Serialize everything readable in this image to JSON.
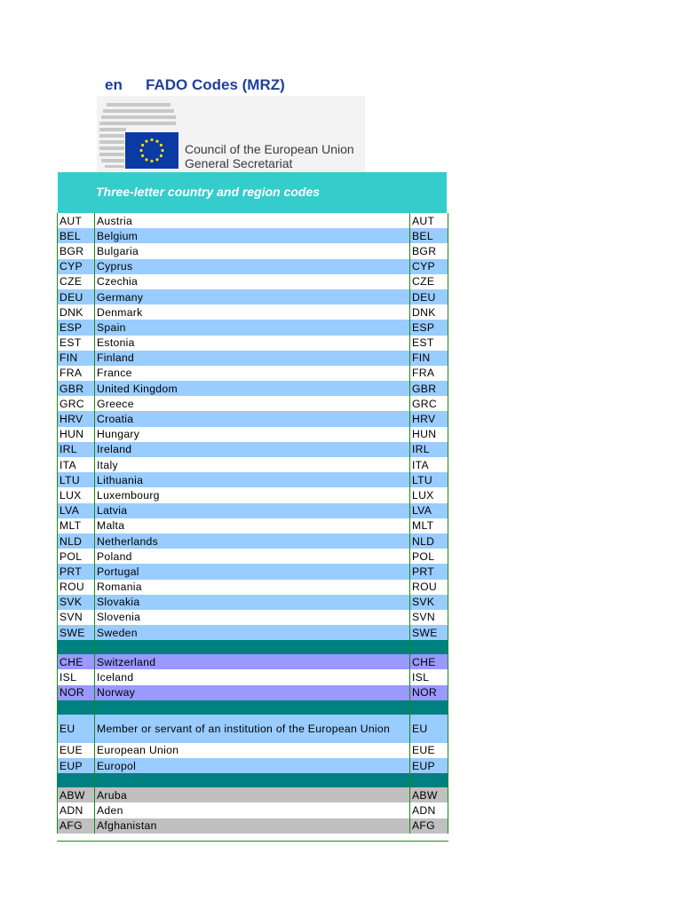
{
  "header": {
    "lang": "en",
    "title": "FADO Codes (MRZ)"
  },
  "logo": {
    "line1": "Council of the European Union",
    "line2": "General Secretariat"
  },
  "section_title": "Three-letter country and region codes",
  "rows": [
    {
      "style": "white",
      "code": "AUT",
      "name": "Austria",
      "code2": "AUT"
    },
    {
      "style": "blue",
      "code": "BEL",
      "name": "Belgium",
      "code2": "BEL"
    },
    {
      "style": "white",
      "code": "BGR",
      "name": "Bulgaria",
      "code2": "BGR"
    },
    {
      "style": "blue",
      "code": "CYP",
      "name": "Cyprus",
      "code2": "CYP"
    },
    {
      "style": "white",
      "code": "CZE",
      "name": "Czechia",
      "code2": "CZE"
    },
    {
      "style": "blue",
      "code": "DEU",
      "name": "Germany",
      "code2": "DEU"
    },
    {
      "style": "white",
      "code": "DNK",
      "name": "Denmark",
      "code2": "DNK"
    },
    {
      "style": "blue",
      "code": "ESP",
      "name": "Spain",
      "code2": "ESP"
    },
    {
      "style": "white",
      "code": "EST",
      "name": "Estonia",
      "code2": "EST"
    },
    {
      "style": "blue",
      "code": "FIN",
      "name": "Finland",
      "code2": "FIN"
    },
    {
      "style": "white",
      "code": "FRA",
      "name": "France",
      "code2": "FRA"
    },
    {
      "style": "blue",
      "code": "GBR",
      "name": "United Kingdom",
      "code2": "GBR"
    },
    {
      "style": "white",
      "code": "GRC",
      "name": "Greece",
      "code2": "GRC"
    },
    {
      "style": "blue",
      "code": "HRV",
      "name": "Croatia",
      "code2": "HRV"
    },
    {
      "style": "white",
      "code": "HUN",
      "name": "Hungary",
      "code2": "HUN"
    },
    {
      "style": "blue",
      "code": "IRL",
      "name": "Ireland",
      "code2": "IRL"
    },
    {
      "style": "white",
      "code": "ITA",
      "name": "Italy",
      "code2": "ITA"
    },
    {
      "style": "blue",
      "code": "LTU",
      "name": "Lithuania",
      "code2": "LTU"
    },
    {
      "style": "white",
      "code": "LUX",
      "name": "Luxembourg",
      "code2": "LUX"
    },
    {
      "style": "blue",
      "code": "LVA",
      "name": "Latvia",
      "code2": "LVA"
    },
    {
      "style": "white",
      "code": "MLT",
      "name": "Malta",
      "code2": "MLT"
    },
    {
      "style": "blue",
      "code": "NLD",
      "name": "Netherlands",
      "code2": "NLD"
    },
    {
      "style": "white",
      "code": "POL",
      "name": "Poland",
      "code2": "POL"
    },
    {
      "style": "blue",
      "code": "PRT",
      "name": "Portugal",
      "code2": "PRT"
    },
    {
      "style": "white",
      "code": "ROU",
      "name": "Romania",
      "code2": "ROU"
    },
    {
      "style": "blue",
      "code": "SVK",
      "name": "Slovakia",
      "code2": "SVK"
    },
    {
      "style": "white",
      "code": "SVN",
      "name": "Slovenia",
      "code2": "SVN"
    },
    {
      "style": "blue",
      "code": "SWE",
      "name": "Sweden",
      "code2": "SWE"
    },
    {
      "style": "teal sep",
      "code": "",
      "name": "",
      "code2": ""
    },
    {
      "style": "purple",
      "code": "CHE",
      "name": "Switzerland",
      "code2": "CHE"
    },
    {
      "style": "white",
      "code": "ISL",
      "name": "Iceland",
      "code2": "ISL"
    },
    {
      "style": "purple",
      "code": "NOR",
      "name": "Norway",
      "code2": "NOR"
    },
    {
      "style": "teal sep",
      "code": "",
      "name": "",
      "code2": ""
    },
    {
      "style": "blue tall",
      "code": "EU",
      "name": "Member or servant of an institution of the European Union",
      "code2": "EU"
    },
    {
      "style": "white",
      "code": "EUE",
      "name": "European Union",
      "code2": "EUE"
    },
    {
      "style": "blue",
      "code": "EUP",
      "name": "Europol",
      "code2": "EUP"
    },
    {
      "style": "teal sep",
      "code": "",
      "name": "",
      "code2": ""
    },
    {
      "style": "grey",
      "code": "ABW",
      "name": "Aruba",
      "code2": "ABW"
    },
    {
      "style": "white",
      "code": "ADN",
      "name": "Aden",
      "code2": "ADN"
    },
    {
      "style": "grey",
      "code": "AFG",
      "name": "Afghanistan",
      "code2": "AFG"
    }
  ]
}
